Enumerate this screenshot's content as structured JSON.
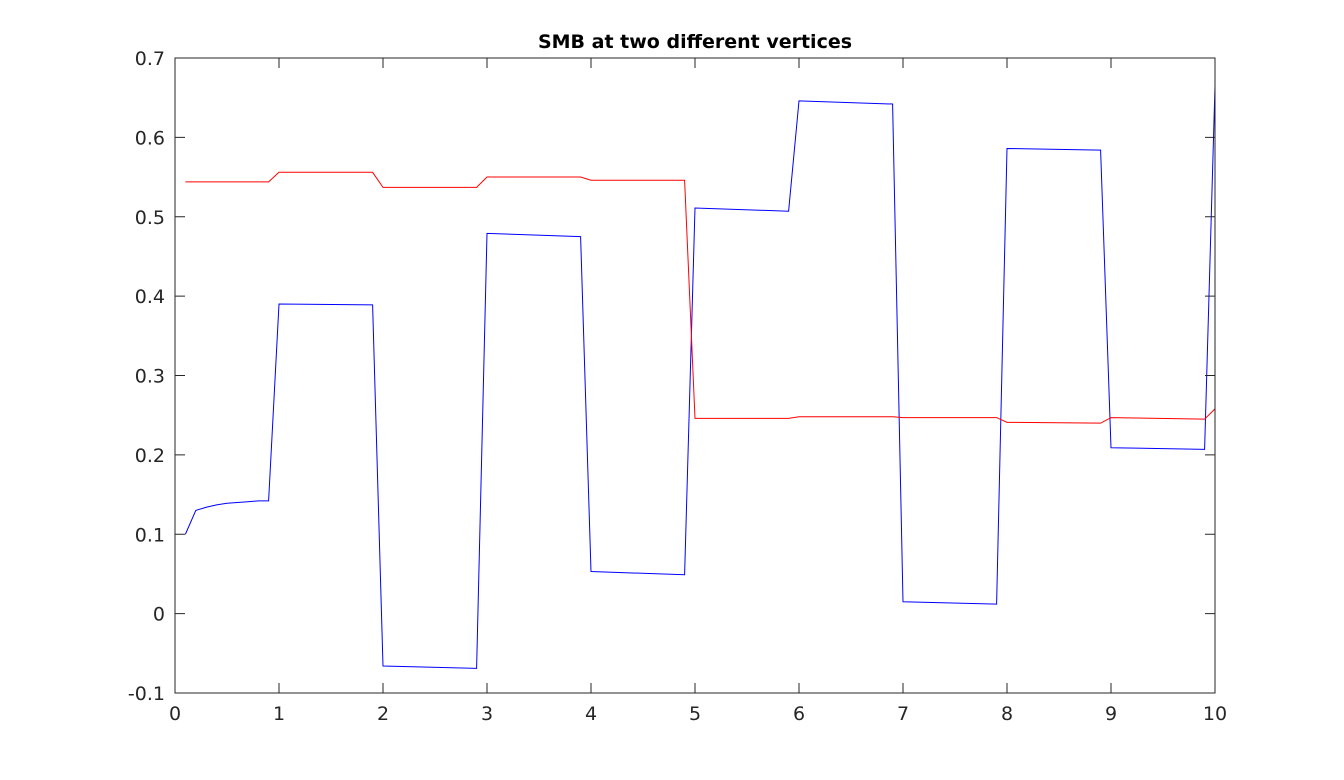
{
  "chart_data": {
    "type": "line",
    "title": "SMB at two different vertices",
    "xlabel": "",
    "ylabel": "",
    "xlim": [
      0,
      10
    ],
    "ylim": [
      -0.1,
      0.7
    ],
    "grid": false,
    "box": true,
    "x_ticks": [
      0,
      1,
      2,
      3,
      4,
      5,
      6,
      7,
      8,
      9,
      10
    ],
    "y_ticks": [
      -0.1,
      0,
      0.1,
      0.2,
      0.3,
      0.4,
      0.5,
      0.6,
      0.7
    ],
    "x_tick_labels": [
      "0",
      "1",
      "2",
      "3",
      "4",
      "5",
      "6",
      "7",
      "8",
      "9",
      "10"
    ],
    "y_tick_labels": [
      "-0.1",
      "0",
      "0.1",
      "0.2",
      "0.3",
      "0.4",
      "0.5",
      "0.6",
      "0.7"
    ],
    "series": [
      {
        "color": "#0000ff",
        "points": [
          [
            0.1,
            0.1
          ],
          [
            0.2,
            0.13
          ],
          [
            0.3,
            0.134
          ],
          [
            0.4,
            0.137
          ],
          [
            0.5,
            0.139
          ],
          [
            0.6,
            0.14
          ],
          [
            0.7,
            0.141
          ],
          [
            0.8,
            0.142
          ],
          [
            0.9,
            0.142
          ],
          [
            1.0,
            0.39
          ],
          [
            1.9,
            0.389
          ],
          [
            2.0,
            -0.066
          ],
          [
            2.9,
            -0.069
          ],
          [
            3.0,
            0.479
          ],
          [
            3.9,
            0.475
          ],
          [
            4.0,
            0.053
          ],
          [
            4.9,
            0.049
          ],
          [
            5.0,
            0.511
          ],
          [
            5.9,
            0.507
          ],
          [
            6.0,
            0.646
          ],
          [
            6.9,
            0.642
          ],
          [
            7.0,
            0.015
          ],
          [
            7.9,
            0.012
          ],
          [
            8.0,
            0.586
          ],
          [
            8.9,
            0.584
          ],
          [
            9.0,
            0.209
          ],
          [
            9.9,
            0.207
          ],
          [
            10.0,
            0.665
          ]
        ]
      },
      {
        "color": "#ff0000",
        "points": [
          [
            0.1,
            0.544
          ],
          [
            0.9,
            0.544
          ],
          [
            1.0,
            0.556
          ],
          [
            1.9,
            0.556
          ],
          [
            2.0,
            0.537
          ],
          [
            2.9,
            0.537
          ],
          [
            3.0,
            0.55
          ],
          [
            3.9,
            0.55
          ],
          [
            4.0,
            0.546
          ],
          [
            4.9,
            0.546
          ],
          [
            5.0,
            0.246
          ],
          [
            5.9,
            0.246
          ],
          [
            6.0,
            0.248
          ],
          [
            6.9,
            0.248
          ],
          [
            7.0,
            0.247
          ],
          [
            7.9,
            0.247
          ],
          [
            8.0,
            0.241
          ],
          [
            8.9,
            0.24
          ],
          [
            9.0,
            0.247
          ],
          [
            9.9,
            0.245
          ],
          [
            10.0,
            0.258
          ]
        ]
      }
    ]
  }
}
